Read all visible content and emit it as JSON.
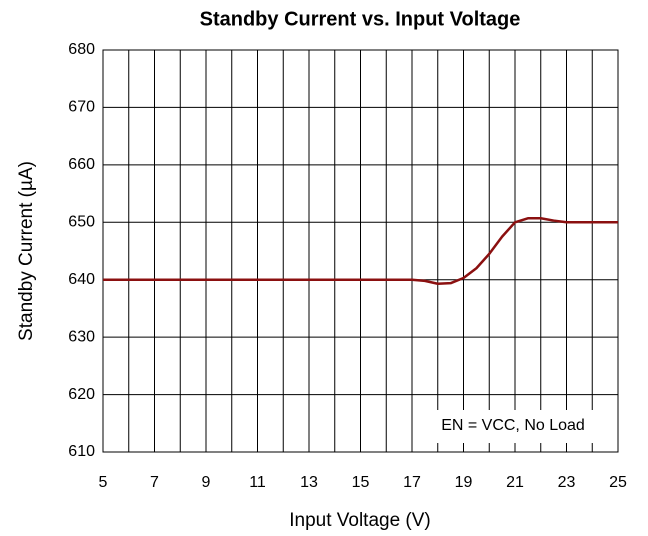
{
  "chart_data": {
    "type": "line",
    "title": "Standby Current vs. Input Voltage",
    "x_label": "Input Voltage (V)",
    "y_label": "Standby Current (µA)",
    "annotation": "EN = VCC, No Load",
    "x": [
      5,
      7,
      9,
      11,
      13,
      15,
      17,
      17.5,
      18,
      18.5,
      19,
      19.5,
      20,
      20.5,
      21,
      21.5,
      22,
      22.5,
      23,
      24,
      25
    ],
    "series": [
      {
        "name": "Standby Current",
        "color": "#8b1010",
        "values": [
          640,
          640,
          640,
          640,
          640,
          640,
          640,
          639.8,
          639.3,
          639.4,
          640.3,
          642,
          644.5,
          647.5,
          650,
          650.7,
          650.7,
          650.3,
          650,
          650,
          650
        ]
      }
    ],
    "xlim": [
      5,
      25
    ],
    "xticks": [
      5,
      7,
      9,
      11,
      13,
      15,
      17,
      19,
      21,
      23,
      25
    ],
    "xminor_ticks": [
      6,
      8,
      10,
      12,
      14,
      16,
      18,
      20,
      22,
      24
    ],
    "ylim": [
      610,
      680
    ],
    "yticks": [
      610,
      620,
      630,
      640,
      650,
      660,
      670,
      680
    ],
    "grid": true
  }
}
